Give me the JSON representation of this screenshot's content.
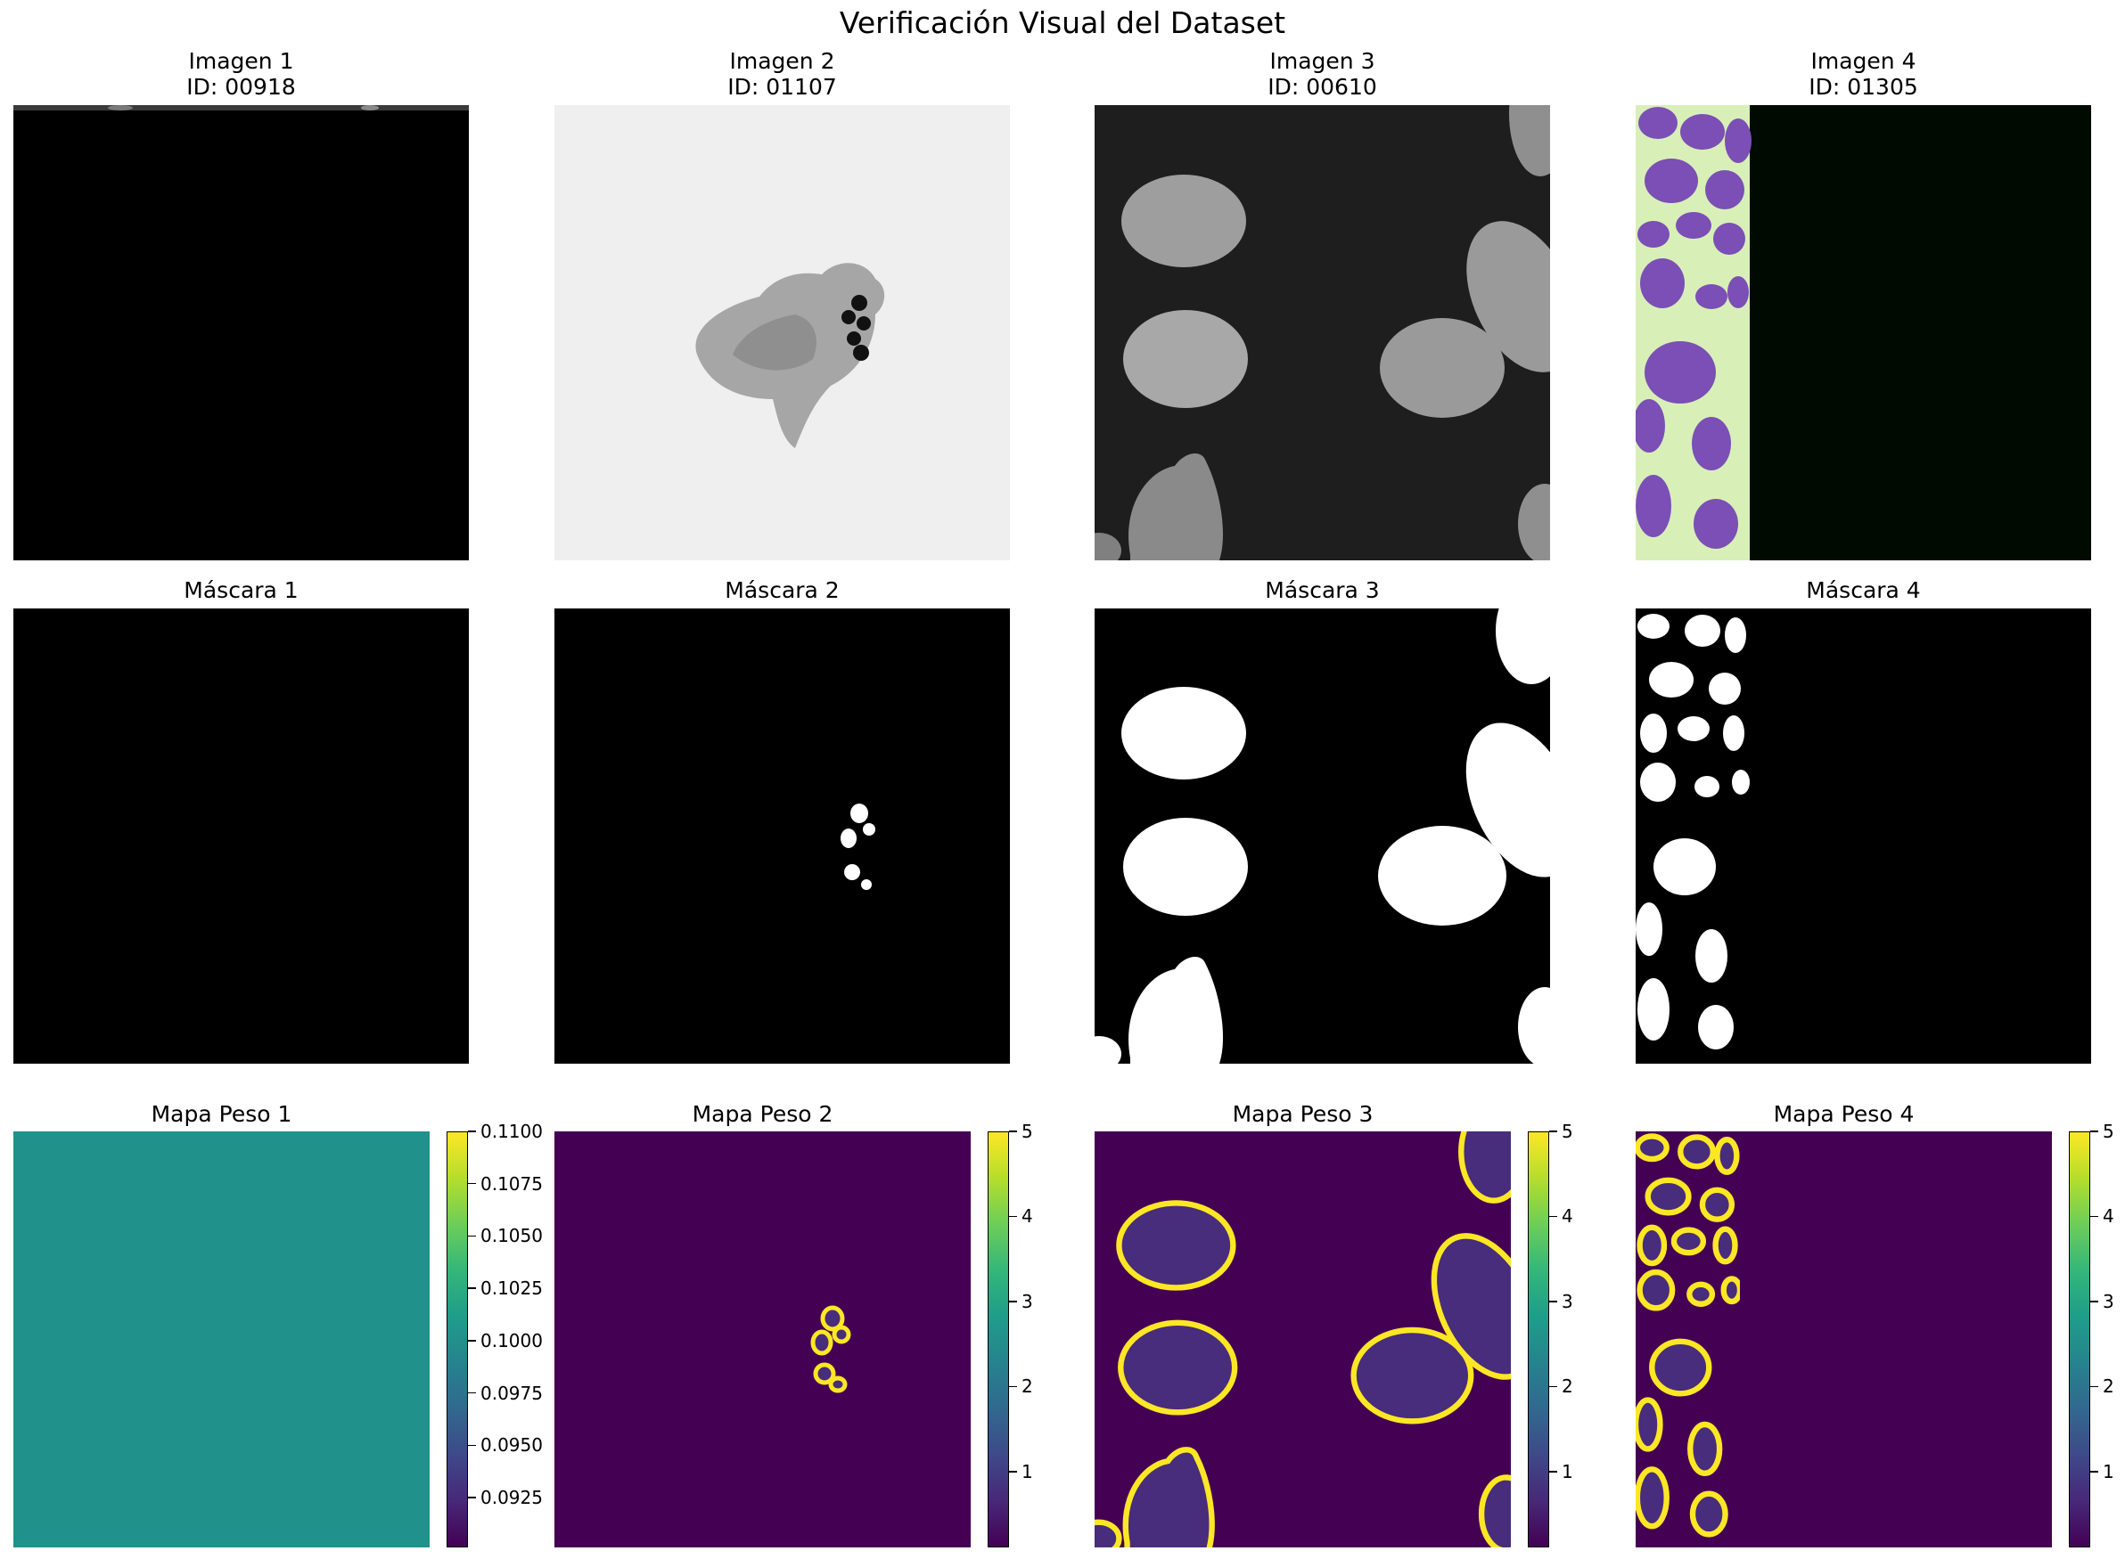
{
  "figure": {
    "title": "Verificación Visual del Dataset"
  },
  "row_images": [
    {
      "title_line1": "Imagen 1",
      "title_line2": "ID: 00918"
    },
    {
      "title_line1": "Imagen 2",
      "title_line2": "ID: 01107"
    },
    {
      "title_line1": "Imagen 3",
      "title_line2": "ID: 00610"
    },
    {
      "title_line1": "Imagen 4",
      "title_line2": "ID: 01305"
    }
  ],
  "row_masks": [
    {
      "title": "Máscara 1"
    },
    {
      "title": "Máscara 2"
    },
    {
      "title": "Máscara 3"
    },
    {
      "title": "Máscara 4"
    }
  ],
  "row_weights": [
    {
      "title": "Mapa Peso 1",
      "colorbar_ticks": [
        "0.1100",
        "0.1075",
        "0.1050",
        "0.1025",
        "0.1000",
        "0.0975",
        "0.0950",
        "0.0925"
      ]
    },
    {
      "title": "Mapa Peso 2",
      "colorbar_ticks": [
        "5",
        "4",
        "3",
        "2",
        "1"
      ]
    },
    {
      "title": "Mapa Peso 3",
      "colorbar_ticks": [
        "5",
        "4",
        "3",
        "2",
        "1"
      ]
    },
    {
      "title": "Mapa Peso 4",
      "colorbar_ticks": [
        "5",
        "4",
        "3",
        "2",
        "1"
      ]
    }
  ],
  "colors": {
    "viridis_low": "#440154",
    "viridis_mid_low": "#472d7b",
    "viridis_mid": "#21918c",
    "viridis_high": "#fde725",
    "he_background": "#d8f0b8",
    "he_nuclei": "#7b4fb5"
  }
}
